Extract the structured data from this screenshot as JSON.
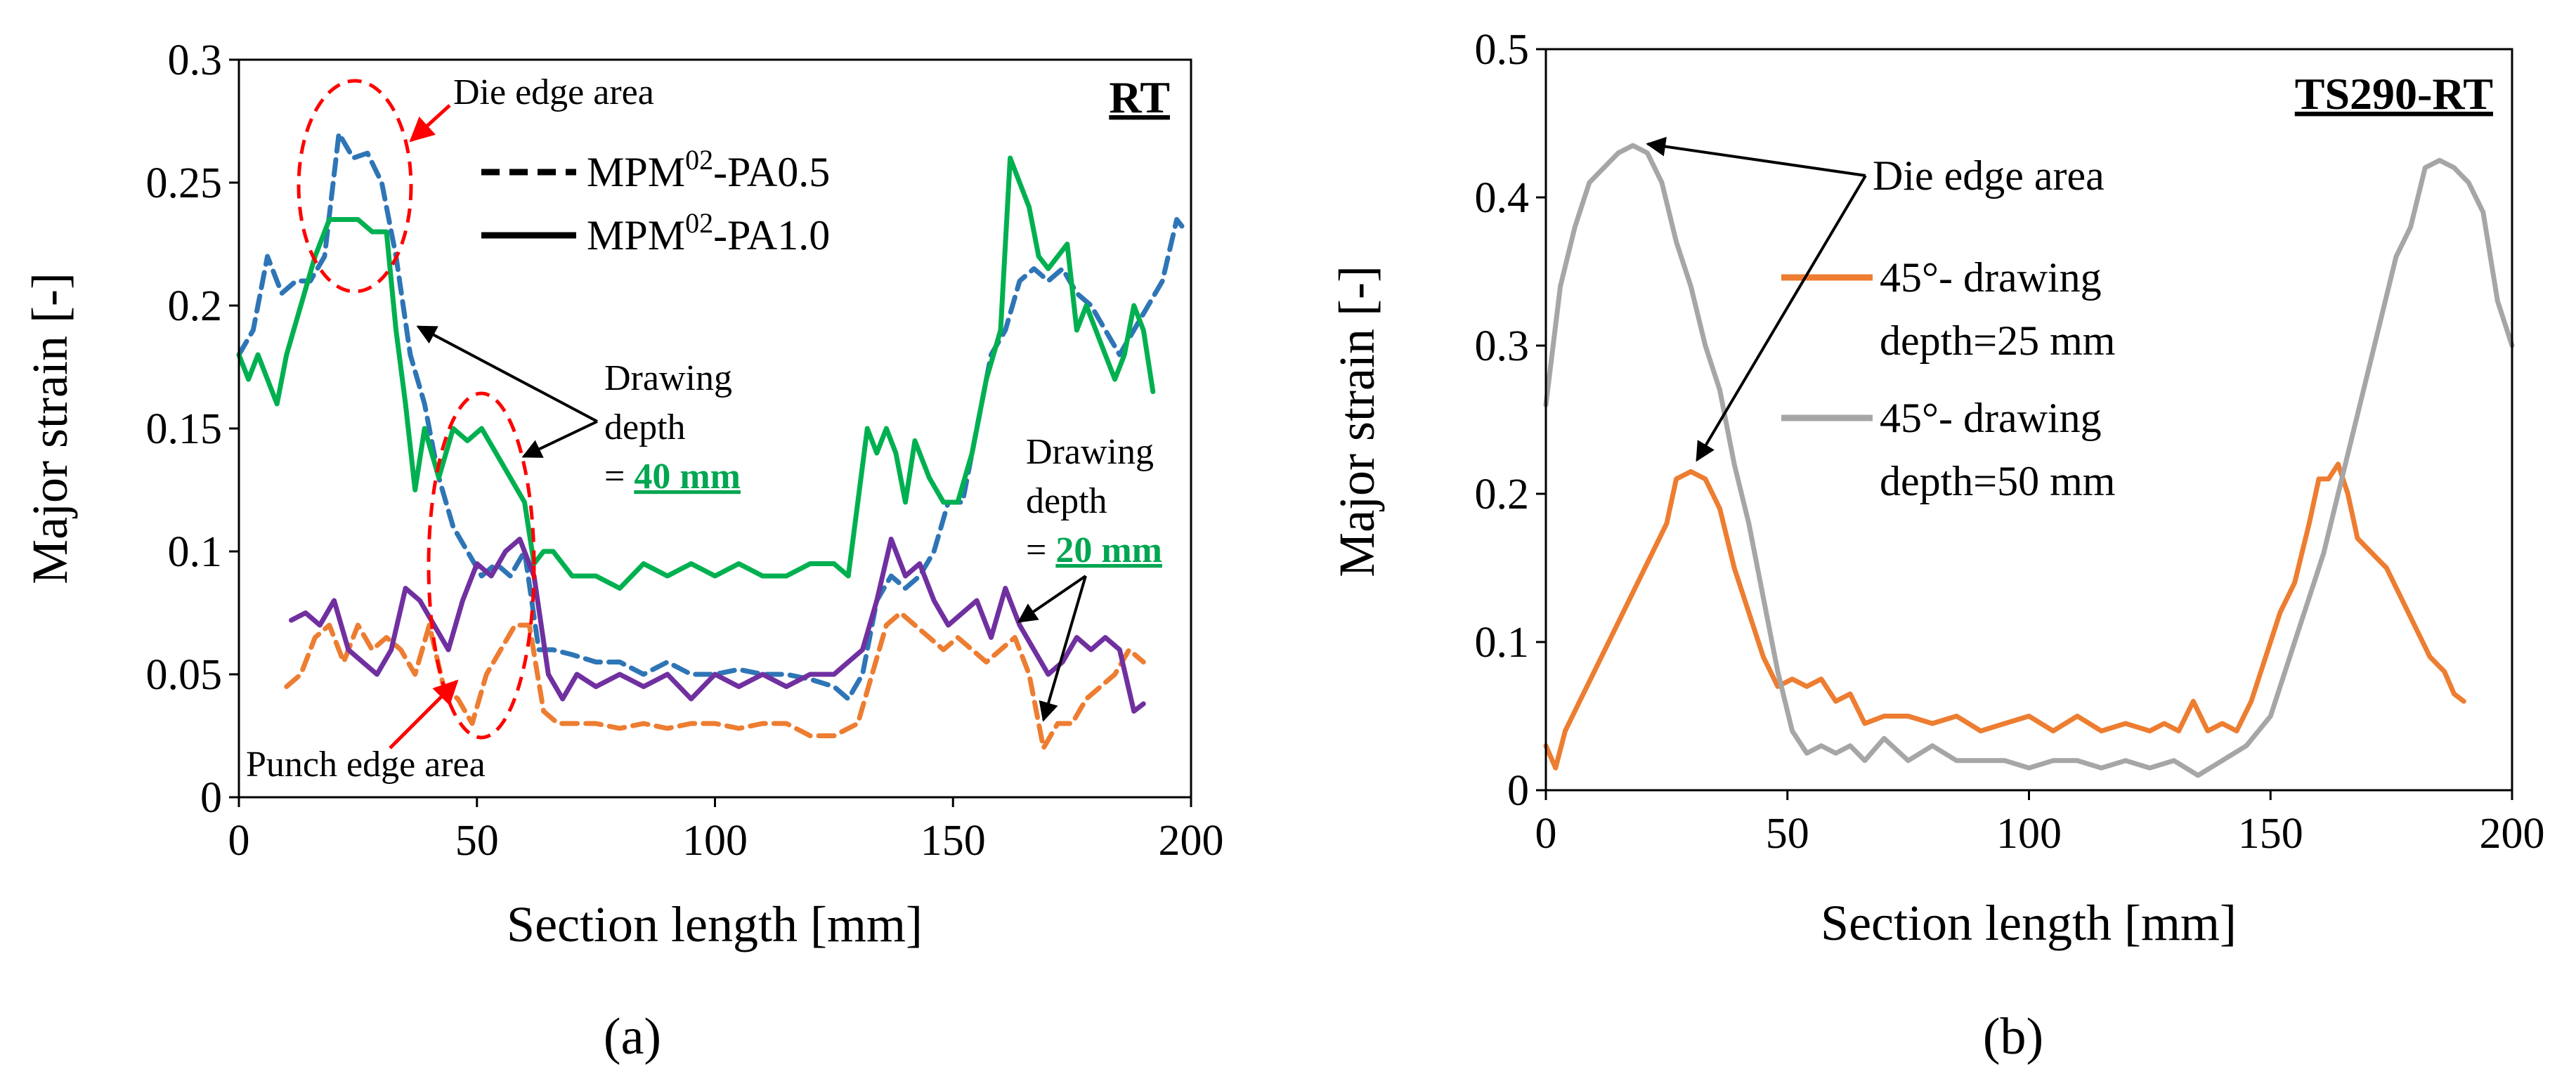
{
  "chart_data": [
    {
      "panel_label": "(a)",
      "type": "line",
      "corner_label": "RT",
      "xlabel": "Section length [mm]",
      "ylabel": "Major strain [-]",
      "xlim": [
        0,
        200
      ],
      "ylim": [
        0,
        0.3
      ],
      "xticks": [
        "0",
        "50",
        "100",
        "150",
        "200"
      ],
      "yticks": [
        "0",
        "0.05",
        "0.1",
        "0.15",
        "0.2",
        "0.25",
        "0.3"
      ],
      "grid": false,
      "legend": {
        "placement": "top-center",
        "entries": [
          {
            "label_main": "MPM",
            "label_sup": "02",
            "label_rest": "-PA0.5",
            "style": "dashed"
          },
          {
            "label_main": "MPM",
            "label_sup": "02",
            "label_rest": "-PA1.0",
            "style": "solid"
          }
        ]
      },
      "series": [
        {
          "style": "dashed",
          "color": "#2e75b6",
          "x": [
            0,
            3,
            6,
            9,
            12,
            15,
            18,
            21,
            24,
            27,
            30,
            33,
            36,
            39,
            42,
            45,
            48,
            51,
            54,
            57,
            60,
            63,
            66,
            70,
            75,
            80,
            85,
            90,
            95,
            100,
            105,
            110,
            115,
            120,
            125,
            128,
            131,
            134,
            137,
            140,
            143,
            146,
            149,
            152,
            155,
            158,
            161,
            164,
            167,
            170,
            173,
            176,
            179,
            182,
            185,
            188,
            191,
            194,
            197,
            199
          ],
          "y": [
            0.18,
            0.19,
            0.22,
            0.205,
            0.21,
            0.21,
            0.22,
            0.27,
            0.26,
            0.262,
            0.25,
            0.22,
            0.18,
            0.16,
            0.13,
            0.11,
            0.1,
            0.09,
            0.095,
            0.09,
            0.1,
            0.06,
            0.06,
            0.058,
            0.055,
            0.055,
            0.05,
            0.055,
            0.05,
            0.05,
            0.052,
            0.05,
            0.05,
            0.048,
            0.045,
            0.04,
            0.05,
            0.08,
            0.09,
            0.085,
            0.09,
            0.1,
            0.12,
            0.12,
            0.15,
            0.18,
            0.19,
            0.21,
            0.215,
            0.21,
            0.215,
            0.205,
            0.2,
            0.19,
            0.18,
            0.19,
            0.2,
            0.21,
            0.235,
            0.23
          ]
        },
        {
          "style": "solid",
          "color": "#00b050",
          "x": [
            0,
            2,
            4,
            6,
            8,
            10,
            13,
            16,
            19,
            22,
            25,
            28,
            31,
            33,
            35,
            37,
            39,
            42,
            45,
            48,
            51,
            54,
            57,
            60,
            62,
            64,
            66,
            70,
            75,
            80,
            85,
            90,
            95,
            100,
            105,
            110,
            115,
            120,
            125,
            128,
            130,
            132,
            134,
            136,
            138,
            140,
            142,
            145,
            148,
            151,
            154,
            157,
            160,
            162,
            164,
            166,
            168,
            170,
            172,
            174,
            176,
            178,
            180,
            182,
            184,
            186,
            188,
            190,
            192
          ],
          "y": [
            0.18,
            0.17,
            0.18,
            0.17,
            0.16,
            0.18,
            0.2,
            0.22,
            0.235,
            0.235,
            0.235,
            0.23,
            0.23,
            0.19,
            0.16,
            0.125,
            0.15,
            0.13,
            0.15,
            0.145,
            0.15,
            0.14,
            0.13,
            0.12,
            0.095,
            0.1,
            0.1,
            0.09,
            0.09,
            0.085,
            0.095,
            0.09,
            0.095,
            0.09,
            0.095,
            0.09,
            0.09,
            0.095,
            0.095,
            0.09,
            0.12,
            0.15,
            0.14,
            0.15,
            0.14,
            0.12,
            0.145,
            0.13,
            0.12,
            0.12,
            0.14,
            0.17,
            0.19,
            0.26,
            0.25,
            0.24,
            0.22,
            0.215,
            0.22,
            0.225,
            0.19,
            0.2,
            0.19,
            0.18,
            0.17,
            0.18,
            0.2,
            0.19,
            0.165
          ]
        },
        {
          "style": "dashed",
          "color": "#ed7d31",
          "x": [
            10,
            13,
            16,
            19,
            22,
            25,
            28,
            31,
            34,
            37,
            40,
            43,
            46,
            49,
            52,
            55,
            58,
            61,
            64,
            67,
            70,
            75,
            80,
            85,
            90,
            95,
            100,
            105,
            110,
            115,
            120,
            125,
            130,
            133,
            136,
            139,
            142,
            145,
            148,
            151,
            154,
            157,
            160,
            163,
            166,
            169,
            172,
            175,
            178,
            181,
            184,
            187,
            190
          ],
          "y": [
            0.045,
            0.05,
            0.065,
            0.07,
            0.055,
            0.07,
            0.06,
            0.065,
            0.06,
            0.05,
            0.07,
            0.045,
            0.04,
            0.03,
            0.05,
            0.06,
            0.07,
            0.07,
            0.035,
            0.03,
            0.03,
            0.03,
            0.028,
            0.03,
            0.028,
            0.03,
            0.03,
            0.028,
            0.03,
            0.03,
            0.025,
            0.025,
            0.03,
            0.05,
            0.07,
            0.075,
            0.07,
            0.065,
            0.06,
            0.065,
            0.06,
            0.055,
            0.06,
            0.065,
            0.05,
            0.02,
            0.03,
            0.03,
            0.04,
            0.045,
            0.05,
            0.06,
            0.055
          ]
        },
        {
          "style": "solid",
          "color": "#7030a0",
          "x": [
            11,
            14,
            17,
            20,
            23,
            26,
            29,
            32,
            35,
            38,
            41,
            44,
            47,
            50,
            53,
            56,
            59,
            62,
            65,
            68,
            71,
            75,
            80,
            85,
            90,
            95,
            100,
            105,
            110,
            115,
            120,
            125,
            128,
            131,
            134,
            137,
            140,
            143,
            146,
            149,
            152,
            155,
            158,
            161,
            164,
            167,
            170,
            173,
            176,
            179,
            182,
            185,
            188,
            190
          ],
          "y": [
            0.072,
            0.075,
            0.07,
            0.08,
            0.06,
            0.055,
            0.05,
            0.06,
            0.085,
            0.08,
            0.07,
            0.06,
            0.08,
            0.095,
            0.09,
            0.1,
            0.105,
            0.09,
            0.05,
            0.04,
            0.05,
            0.045,
            0.05,
            0.045,
            0.05,
            0.04,
            0.05,
            0.045,
            0.05,
            0.045,
            0.05,
            0.05,
            0.055,
            0.06,
            0.08,
            0.105,
            0.09,
            0.095,
            0.08,
            0.07,
            0.075,
            0.08,
            0.065,
            0.085,
            0.07,
            0.06,
            0.05,
            0.055,
            0.065,
            0.06,
            0.065,
            0.06,
            0.035,
            0.038
          ]
        }
      ],
      "annotations": [
        {
          "text": "Die edge area"
        },
        {
          "lines": [
            "Drawing",
            "depth"
          ],
          "value_prefix": "= ",
          "value": "40 mm"
        },
        {
          "lines": [
            "Drawing",
            "depth"
          ],
          "value_prefix": "= ",
          "value": "20 mm"
        },
        {
          "text": "Punch edge area"
        }
      ]
    },
    {
      "panel_label": "(b)",
      "type": "line",
      "corner_label": "TS290-RT",
      "xlabel": "Section length [mm]",
      "ylabel": "Major strain [-]",
      "xlim": [
        0,
        200
      ],
      "ylim": [
        0,
        0.5
      ],
      "xticks": [
        "0",
        "50",
        "100",
        "150",
        "200"
      ],
      "yticks": [
        "0",
        "0.1",
        "0.2",
        "0.3",
        "0.4",
        "0.5"
      ],
      "grid": false,
      "legend": {
        "placement": "center-right",
        "entries": [
          {
            "lines": [
              "45°- drawing",
              "depth=25 mm"
            ],
            "color": "#ed7d31"
          },
          {
            "lines": [
              "45°- drawing",
              "depth=50 mm"
            ],
            "color": "#a6a6a6"
          }
        ]
      },
      "series": [
        {
          "name": "45°- drawing depth=25 mm",
          "color": "#ed7d31",
          "x": [
            0,
            2,
            4,
            7,
            10,
            13,
            16,
            19,
            22,
            25,
            27,
            30,
            33,
            36,
            39,
            42,
            45,
            48,
            51,
            54,
            57,
            60,
            63,
            66,
            70,
            75,
            80,
            85,
            90,
            95,
            100,
            105,
            110,
            115,
            120,
            125,
            128,
            131,
            134,
            137,
            140,
            143,
            146,
            149,
            152,
            155,
            158,
            160,
            162,
            164,
            166,
            168,
            171,
            174,
            177,
            180,
            183,
            186,
            188,
            190
          ],
          "y": [
            0.03,
            0.015,
            0.04,
            0.06,
            0.08,
            0.1,
            0.12,
            0.14,
            0.16,
            0.18,
            0.21,
            0.215,
            0.21,
            0.19,
            0.15,
            0.12,
            0.09,
            0.07,
            0.075,
            0.07,
            0.075,
            0.06,
            0.065,
            0.045,
            0.05,
            0.05,
            0.045,
            0.05,
            0.04,
            0.045,
            0.05,
            0.04,
            0.05,
            0.04,
            0.045,
            0.04,
            0.045,
            0.04,
            0.06,
            0.04,
            0.045,
            0.04,
            0.06,
            0.09,
            0.12,
            0.14,
            0.18,
            0.21,
            0.21,
            0.22,
            0.2,
            0.17,
            0.16,
            0.15,
            0.13,
            0.11,
            0.09,
            0.08,
            0.065,
            0.06
          ]
        },
        {
          "name": "45°- drawing depth=50 mm",
          "color": "#a6a6a6",
          "x": [
            0,
            3,
            6,
            9,
            12,
            15,
            18,
            21,
            24,
            27,
            30,
            33,
            36,
            39,
            42,
            45,
            48,
            51,
            54,
            57,
            60,
            63,
            66,
            70,
            75,
            80,
            85,
            90,
            95,
            100,
            105,
            110,
            115,
            120,
            125,
            130,
            135,
            140,
            145,
            150,
            155,
            158,
            161,
            164,
            167,
            170,
            173,
            176,
            179,
            182,
            185,
            188,
            191,
            194,
            197,
            200
          ],
          "y": [
            0.26,
            0.34,
            0.38,
            0.41,
            0.42,
            0.43,
            0.435,
            0.43,
            0.41,
            0.37,
            0.34,
            0.3,
            0.27,
            0.22,
            0.18,
            0.13,
            0.08,
            0.04,
            0.025,
            0.03,
            0.025,
            0.03,
            0.02,
            0.035,
            0.02,
            0.03,
            0.02,
            0.02,
            0.02,
            0.015,
            0.02,
            0.02,
            0.015,
            0.02,
            0.015,
            0.02,
            0.01,
            0.02,
            0.03,
            0.05,
            0.1,
            0.13,
            0.16,
            0.2,
            0.24,
            0.28,
            0.32,
            0.36,
            0.38,
            0.42,
            0.425,
            0.42,
            0.41,
            0.39,
            0.33,
            0.3
          ]
        }
      ],
      "annotations": [
        {
          "text": "Die edge area"
        }
      ]
    }
  ]
}
